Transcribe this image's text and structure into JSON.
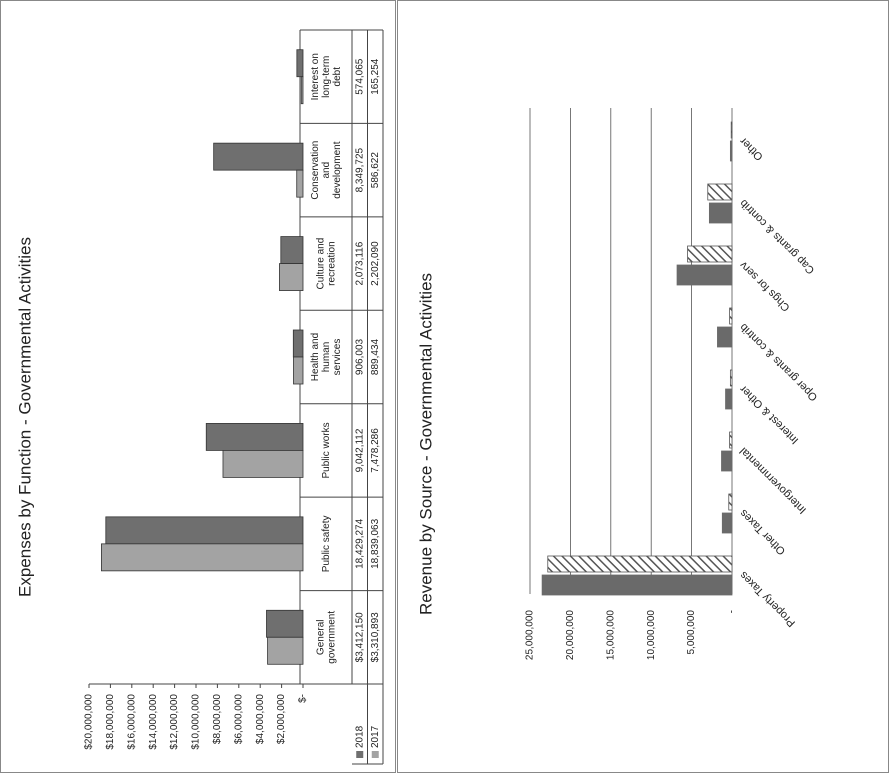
{
  "chart_data": [
    {
      "type": "bar",
      "title": "Expenses by Function - Governmental Activities",
      "categories": [
        "General government",
        "Public safety",
        "Public works",
        "Health and human services",
        "Culture and recreation",
        "Conservation and development",
        "Interest on long-term debt"
      ],
      "series": [
        {
          "name": "2018",
          "color": "#6f6f6f",
          "values": [
            3412150,
            18429274,
            9042112,
            906003,
            2073116,
            8349725,
            574065
          ],
          "value_labels": [
            "$3,412,150",
            "18,429,274",
            "9,042,112",
            "906,003",
            "2,073,116",
            "8,349,725",
            "574,065"
          ]
        },
        {
          "name": "2017",
          "color": "#a3a3a3",
          "values": [
            3310893,
            18839063,
            7478286,
            889434,
            2202090,
            586622,
            165254
          ],
          "value_labels": [
            "$3,310,893",
            "18,839,063",
            "7,478,286",
            "889,434",
            "2,202,090",
            "586,622",
            "165,254"
          ]
        }
      ],
      "ylim": [
        0,
        20000000
      ],
      "yticks": [
        {
          "value": 0,
          "label": "$-"
        },
        {
          "value": 2000000,
          "label": "$2,000,000"
        },
        {
          "value": 4000000,
          "label": "$4,000,000"
        },
        {
          "value": 6000000,
          "label": "$6,000,000"
        },
        {
          "value": 8000000,
          "label": "$8,000,000"
        },
        {
          "value": 10000000,
          "label": "$10,000,000"
        },
        {
          "value": 12000000,
          "label": "$12,000,000"
        },
        {
          "value": 14000000,
          "label": "$14,000,000"
        },
        {
          "value": 16000000,
          "label": "$16,000,000"
        },
        {
          "value": 18000000,
          "label": "$18,000,000"
        },
        {
          "value": 20000000,
          "label": "$20,000,000"
        }
      ],
      "grid": false,
      "data_table": true
    },
    {
      "type": "bar",
      "title": "Revenue by Source - Governmental Activities",
      "categories": [
        "Property Taxes",
        "Other Taxes",
        "Intergovernmental",
        "Interest & Other",
        "Oper grants & contrib",
        "Chgs for serv",
        "Cap grants & contrib",
        "Other"
      ],
      "series": [
        {
          "color": "#6a6a6a",
          "values": [
            23500000,
            1200000,
            1300000,
            800000,
            1800000,
            6800000,
            2800000,
            200000
          ]
        },
        {
          "color": "#555555",
          "pattern": "hatch",
          "values": [
            22800000,
            400000,
            300000,
            200000,
            300000,
            5500000,
            3000000,
            100000
          ]
        }
      ],
      "ylim": [
        0,
        25000000
      ],
      "yticks": [
        {
          "value": 0,
          "label": "-"
        },
        {
          "value": 5000000,
          "label": "5,000,000"
        },
        {
          "value": 10000000,
          "label": "10,000,000"
        },
        {
          "value": 15000000,
          "label": "15,000,000"
        },
        {
          "value": 20000000,
          "label": "20,000,000"
        },
        {
          "value": 25000000,
          "label": "25,000,000"
        }
      ],
      "grid": true
    }
  ]
}
